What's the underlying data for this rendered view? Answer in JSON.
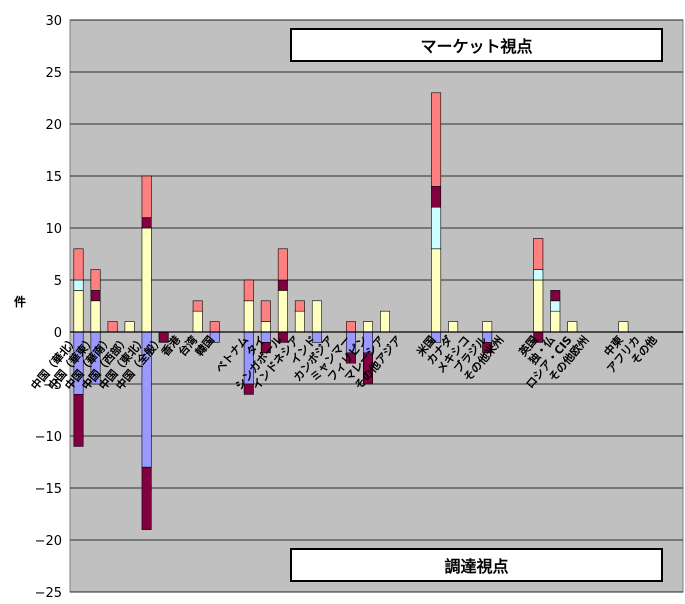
{
  "chart_data": {
    "type": "bar",
    "stacked": true,
    "ylabel": "件",
    "ylim": [
      -25,
      30
    ],
    "yticks": [
      30,
      25,
      20,
      15,
      10,
      5,
      0,
      -5,
      -10,
      -15,
      -20,
      -25
    ],
    "grid": true,
    "plot_background": "#c0c0c0",
    "annotations": {
      "upper": "マーケット視点",
      "lower": "調達視点"
    },
    "categories": [
      "中国（華北）",
      "中国（華東）",
      "中国（華南）",
      "中国（西部）",
      "中国（東北）",
      "中国（全般）",
      "香港",
      "台湾",
      "韓国",
      "ベトナム",
      "タイ",
      "シンガポール",
      "インドネシア",
      "インド",
      "カンボジア",
      "ミャンマー",
      "フィリピン",
      "マレーシア",
      "その他アジア",
      "米国",
      "カナダ",
      "メキシコ",
      "ブラジル",
      "その他米州",
      "英国",
      "独・仏",
      "ロシア・CIS",
      "その他欧州",
      "中東",
      "アフリカ",
      "その他"
    ],
    "category_slots": [
      0,
      1,
      2,
      3,
      4,
      5,
      6,
      7,
      8,
      10,
      11,
      12,
      13,
      14,
      15,
      16,
      17,
      18,
      19,
      21,
      22,
      23,
      24,
      25,
      27,
      28,
      29,
      30,
      32,
      33,
      34
    ],
    "series_colors": [
      "#ffffc0",
      "#ccffff",
      "#800040",
      "#ff8080"
    ],
    "negative_colors": [
      "#9999ff",
      "#800040"
    ],
    "positive_stacks": [
      [
        4,
        1,
        0,
        3
      ],
      [
        3,
        0,
        1,
        2
      ],
      [
        0,
        0,
        0,
        1
      ],
      [
        1,
        0,
        0,
        0
      ],
      [
        10,
        0,
        1,
        4
      ],
      [
        0,
        0,
        0,
        0
      ],
      [
        0,
        0,
        0,
        0
      ],
      [
        2,
        0,
        0,
        1
      ],
      [
        0,
        0,
        0,
        1
      ],
      [
        3,
        0,
        0,
        2
      ],
      [
        1,
        0,
        0,
        2
      ],
      [
        4,
        0,
        1,
        3
      ],
      [
        2,
        0,
        0,
        1
      ],
      [
        3,
        0,
        0,
        0
      ],
      [
        0,
        0,
        0,
        0
      ],
      [
        0,
        0,
        0,
        1
      ],
      [
        1,
        0,
        0,
        0
      ],
      [
        2,
        0,
        0,
        0
      ],
      [
        0,
        0,
        0,
        0
      ],
      [
        8,
        4,
        2,
        9
      ],
      [
        1,
        0,
        0,
        0
      ],
      [
        0,
        0,
        0,
        0
      ],
      [
        1,
        0,
        0,
        0
      ],
      [
        0,
        0,
        0,
        0
      ],
      [
        5,
        1,
        0,
        3
      ],
      [
        2,
        1,
        1,
        0
      ],
      [
        1,
        0,
        0,
        0
      ],
      [
        0,
        0,
        0,
        0
      ],
      [
        1,
        0,
        0,
        0
      ],
      [
        0,
        0,
        0,
        0
      ],
      [
        0,
        0,
        0,
        0
      ]
    ],
    "negative_stacks": [
      [
        -6,
        -5
      ],
      [
        -5,
        0
      ],
      [
        0,
        0
      ],
      [
        0,
        0
      ],
      [
        -13,
        -6
      ],
      [
        0,
        -1
      ],
      [
        0,
        0
      ],
      [
        0,
        0
      ],
      [
        -1,
        0
      ],
      [
        -5,
        -1
      ],
      [
        -1,
        -1
      ],
      [
        0,
        -1
      ],
      [
        0,
        0
      ],
      [
        -1,
        0
      ],
      [
        0,
        0
      ],
      [
        -2,
        -1
      ],
      [
        -2,
        -3
      ],
      [
        0,
        0
      ],
      [
        0,
        0
      ],
      [
        -1,
        0
      ],
      [
        0,
        0
      ],
      [
        0,
        0
      ],
      [
        -1,
        -1
      ],
      [
        0,
        0
      ],
      [
        0,
        -1
      ],
      [
        0,
        0
      ],
      [
        0,
        0
      ],
      [
        0,
        0
      ],
      [
        0,
        0
      ],
      [
        0,
        0
      ],
      [
        0,
        0
      ]
    ]
  }
}
